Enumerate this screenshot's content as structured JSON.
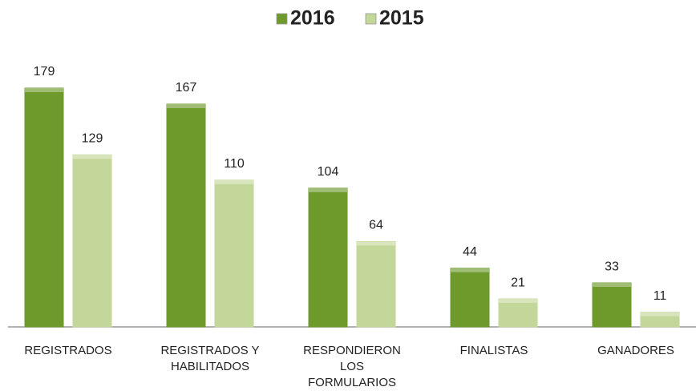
{
  "chart_data": {
    "type": "bar",
    "categories": [
      "REGISTRADOS",
      "REGISTRADOS Y HABILITADOS",
      "RESPONDIERON LOS FORMULARIOS",
      "FINALISTAS",
      "GANADORES"
    ],
    "series": [
      {
        "name": "2016",
        "color": "#6e9a2c",
        "values": [
          179,
          167,
          104,
          44,
          33
        ]
      },
      {
        "name": "2015",
        "color": "#c3d79a",
        "values": [
          129,
          110,
          64,
          21,
          11
        ]
      }
    ],
    "legend": "top"
  }
}
